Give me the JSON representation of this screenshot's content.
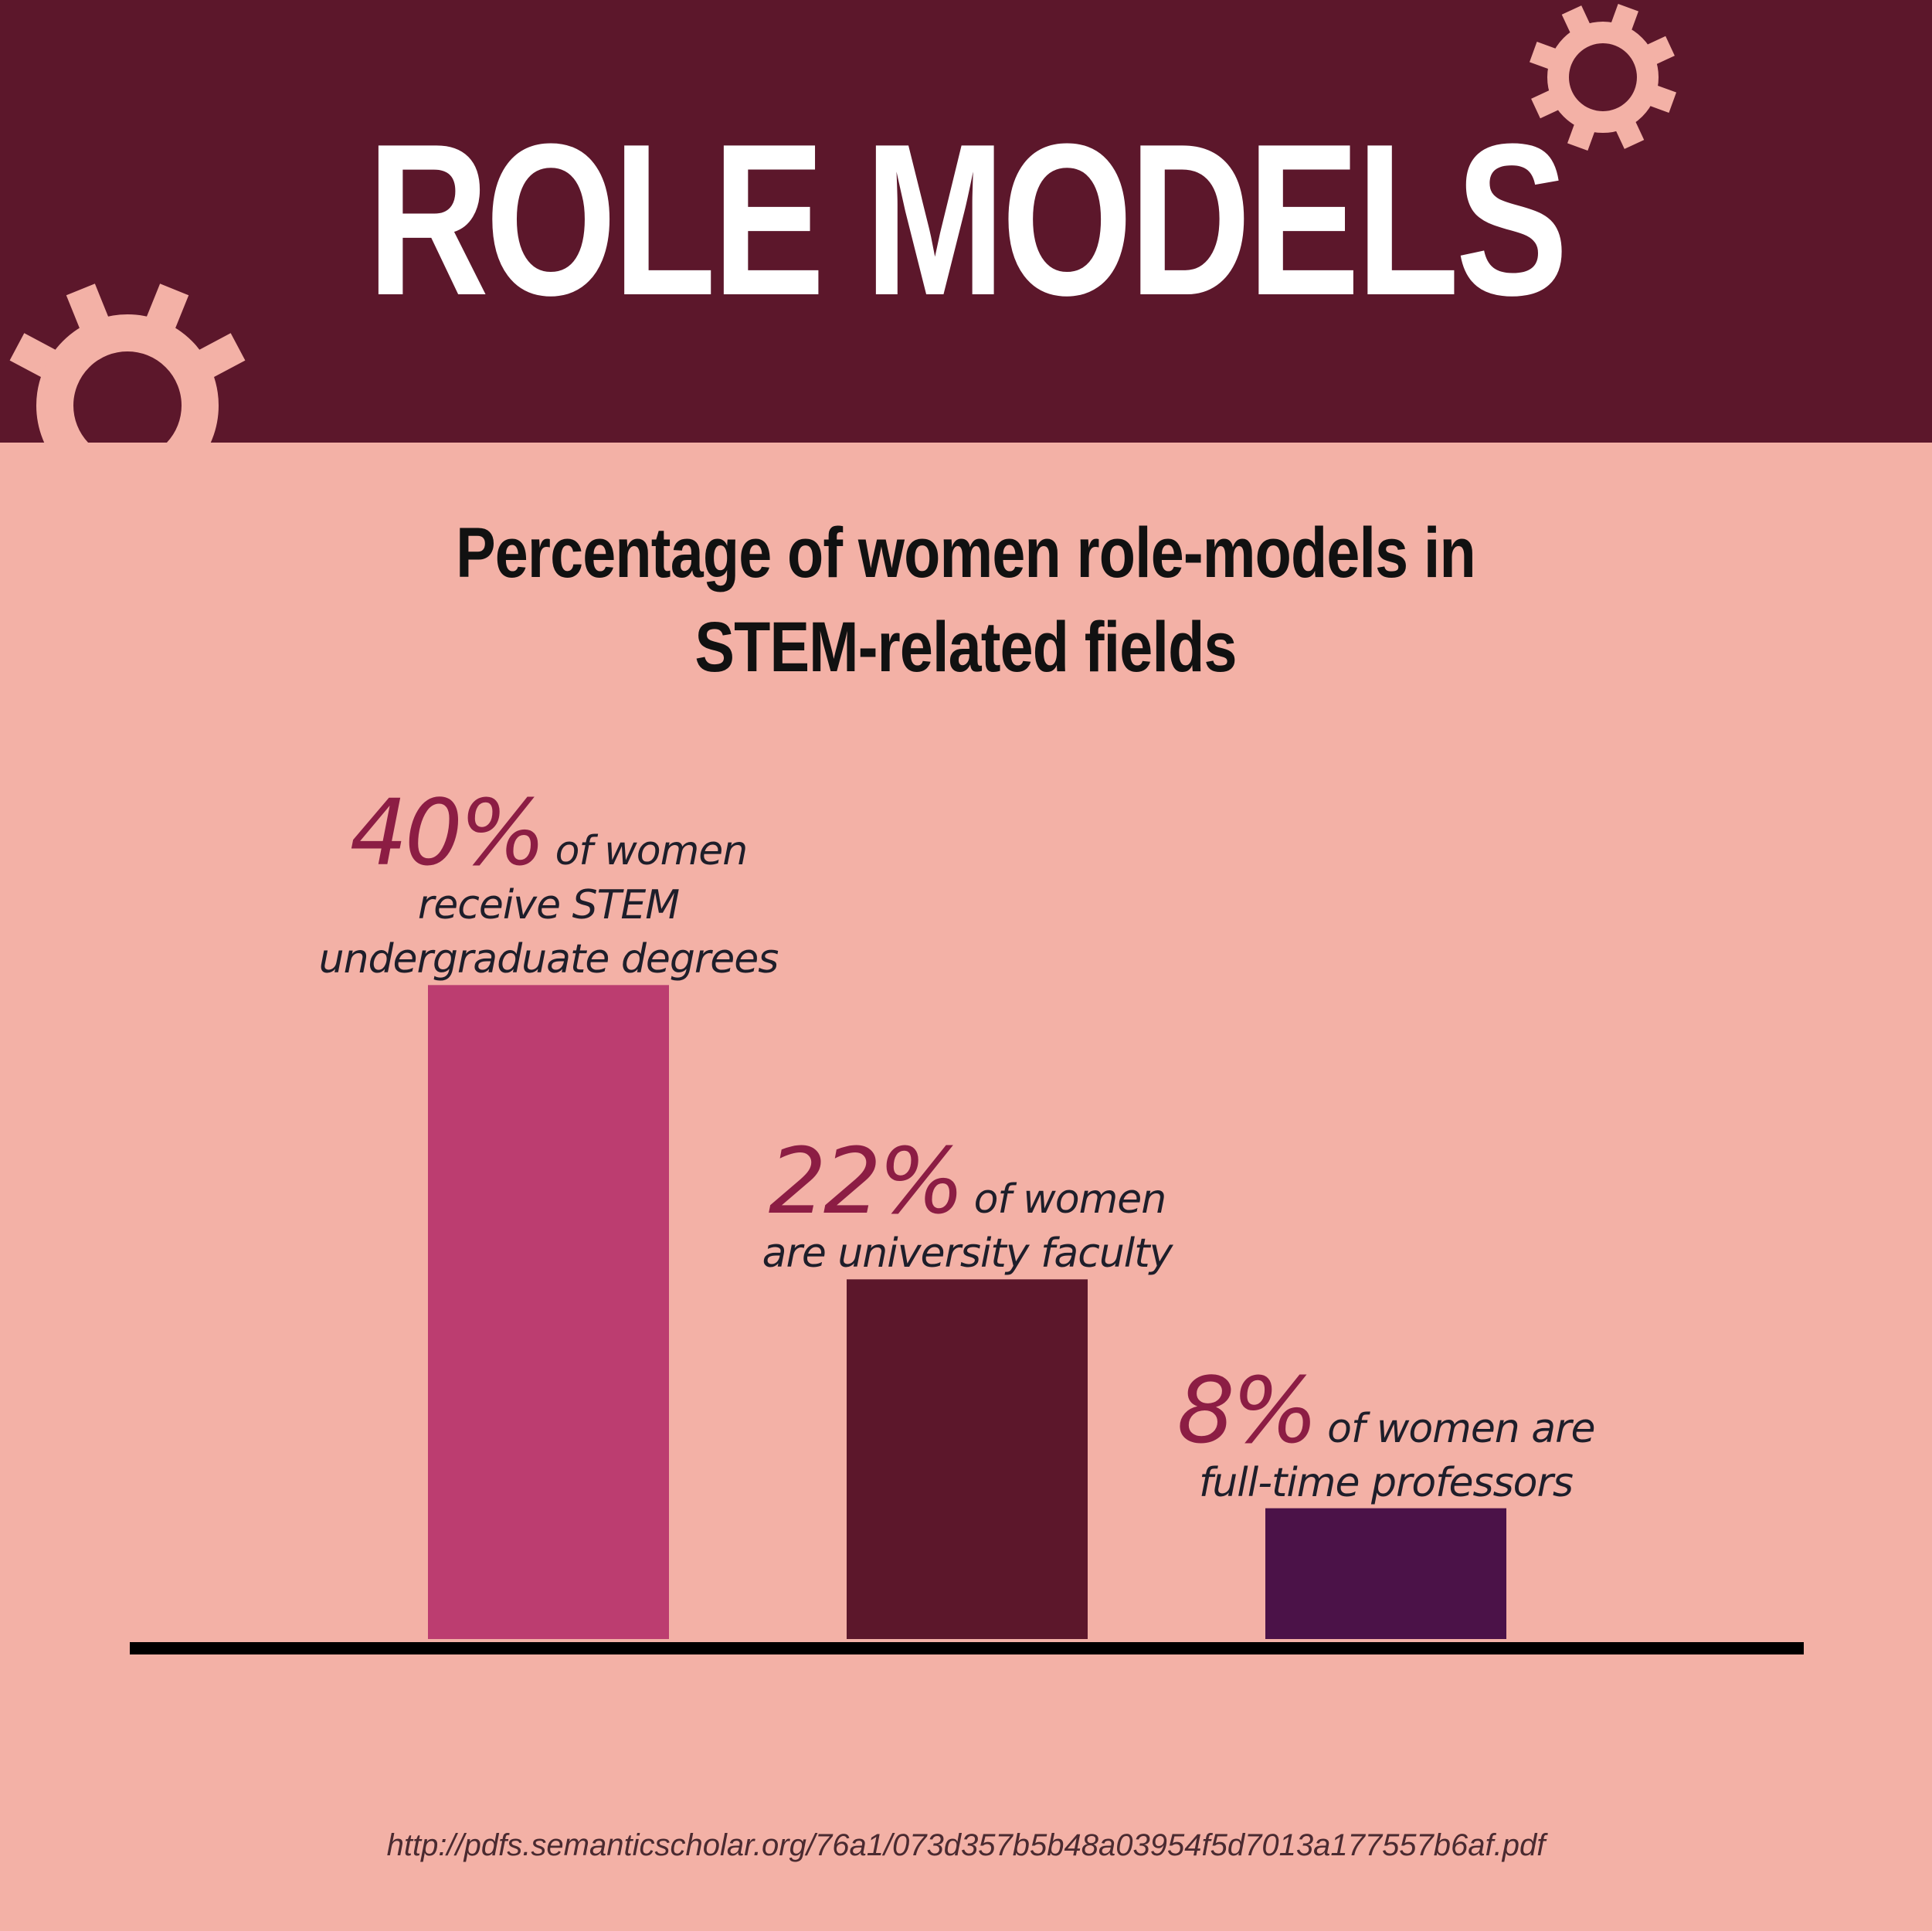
{
  "header": {
    "title": "ROLE MODELS"
  },
  "chart_data": {
    "type": "bar",
    "title": "Percentage of women role-models in STEM-related fields",
    "categories": [
      "receive STEM undergraduate degrees",
      "are university faculty",
      "are full-time professors"
    ],
    "values": [
      40,
      22,
      8
    ],
    "ylim": [
      0,
      48
    ],
    "grid": false,
    "bars": [
      {
        "value_label": "40%",
        "label_lines": [
          "of women",
          "receive STEM",
          "undergraduate degrees"
        ],
        "color": "#bc3d70"
      },
      {
        "value_label": "22%",
        "label_lines": [
          "of women",
          "are university faculty"
        ],
        "color": "#5c172b"
      },
      {
        "value_label": "8%",
        "label_lines": [
          "of women are",
          "full-time professors"
        ],
        "color": "#4b1248"
      }
    ]
  },
  "colors": {
    "background": "#f3b1a6",
    "header": "#5c172b",
    "gear": "#f3b1a6",
    "accent_text": "#8c1d44",
    "baseline": "#000000"
  },
  "footer": {
    "source": "http://pdfs.semanticscholar.org/76a1/073d357b5b48a03954f5d7013a177557b6af.pdf"
  }
}
